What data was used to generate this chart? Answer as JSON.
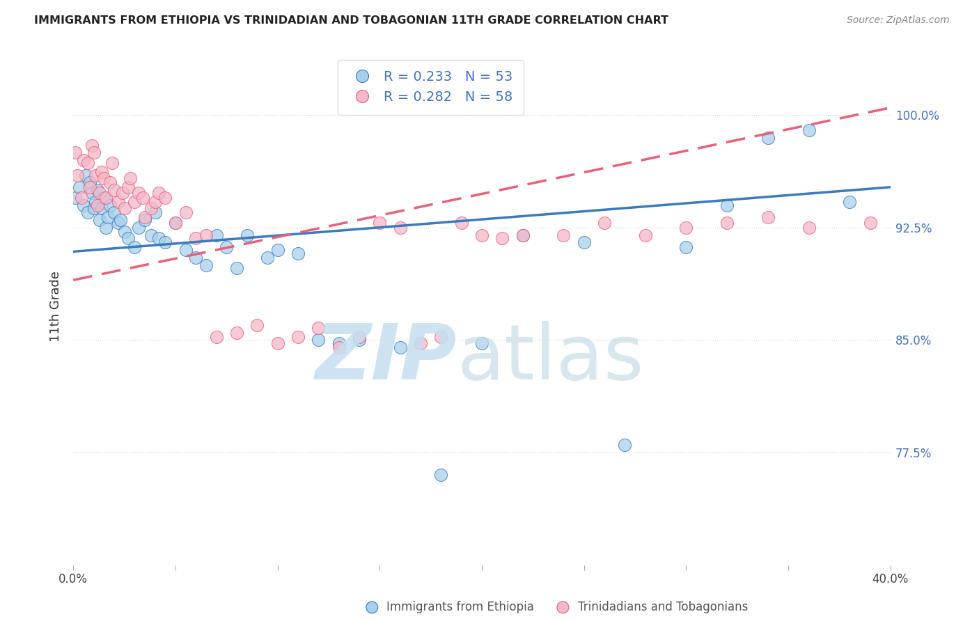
{
  "title": "IMMIGRANTS FROM ETHIOPIA VS TRINIDADIAN AND TOBAGONIAN 11TH GRADE CORRELATION CHART",
  "source": "Source: ZipAtlas.com",
  "ylabel": "11th Grade",
  "ylabel_ticks": [
    "100.0%",
    "92.5%",
    "85.0%",
    "77.5%"
  ],
  "ylabel_values": [
    1.0,
    0.925,
    0.85,
    0.775
  ],
  "xlim": [
    0.0,
    0.4
  ],
  "ylim": [
    0.7,
    1.045
  ],
  "color_blue": "#a8d0eb",
  "color_pink": "#f4b8c8",
  "color_blue_line": "#3a7abf",
  "color_pink_line": "#e8607a",
  "blue_x": [
    0.001,
    0.003,
    0.005,
    0.006,
    0.007,
    0.008,
    0.009,
    0.01,
    0.011,
    0.012,
    0.013,
    0.014,
    0.015,
    0.016,
    0.017,
    0.018,
    0.02,
    0.022,
    0.023,
    0.025,
    0.027,
    0.03,
    0.032,
    0.035,
    0.038,
    0.04,
    0.042,
    0.045,
    0.05,
    0.055,
    0.06,
    0.065,
    0.07,
    0.075,
    0.08,
    0.085,
    0.095,
    0.1,
    0.11,
    0.12,
    0.13,
    0.14,
    0.16,
    0.18,
    0.2,
    0.22,
    0.25,
    0.27,
    0.3,
    0.32,
    0.34,
    0.36,
    0.38
  ],
  "blue_y": [
    0.945,
    0.952,
    0.94,
    0.96,
    0.935,
    0.955,
    0.948,
    0.938,
    0.942,
    0.95,
    0.93,
    0.938,
    0.945,
    0.925,
    0.932,
    0.94,
    0.935,
    0.928,
    0.93,
    0.922,
    0.918,
    0.912,
    0.925,
    0.93,
    0.92,
    0.935,
    0.918,
    0.915,
    0.928,
    0.91,
    0.905,
    0.9,
    0.92,
    0.912,
    0.898,
    0.92,
    0.905,
    0.91,
    0.908,
    0.85,
    0.848,
    0.85,
    0.845,
    0.76,
    0.848,
    0.92,
    0.915,
    0.78,
    0.912,
    0.94,
    0.985,
    0.99,
    0.942
  ],
  "pink_x": [
    0.001,
    0.002,
    0.004,
    0.005,
    0.007,
    0.008,
    0.009,
    0.01,
    0.011,
    0.012,
    0.013,
    0.014,
    0.015,
    0.016,
    0.018,
    0.019,
    0.02,
    0.022,
    0.024,
    0.025,
    0.027,
    0.028,
    0.03,
    0.032,
    0.034,
    0.035,
    0.038,
    0.04,
    0.042,
    0.045,
    0.05,
    0.055,
    0.06,
    0.065,
    0.07,
    0.08,
    0.09,
    0.1,
    0.11,
    0.12,
    0.13,
    0.14,
    0.15,
    0.16,
    0.17,
    0.18,
    0.19,
    0.2,
    0.21,
    0.22,
    0.24,
    0.26,
    0.28,
    0.3,
    0.32,
    0.34,
    0.36,
    0.39
  ],
  "pink_y": [
    0.975,
    0.96,
    0.945,
    0.97,
    0.968,
    0.952,
    0.98,
    0.975,
    0.96,
    0.94,
    0.948,
    0.962,
    0.958,
    0.945,
    0.955,
    0.968,
    0.95,
    0.942,
    0.948,
    0.938,
    0.952,
    0.958,
    0.942,
    0.948,
    0.945,
    0.932,
    0.938,
    0.942,
    0.948,
    0.945,
    0.928,
    0.935,
    0.918,
    0.92,
    0.852,
    0.855,
    0.86,
    0.848,
    0.852,
    0.858,
    0.845,
    0.852,
    0.928,
    0.925,
    0.848,
    0.852,
    0.928,
    0.92,
    0.918,
    0.92,
    0.92,
    0.928,
    0.92,
    0.925,
    0.928,
    0.932,
    0.925,
    0.928
  ],
  "blue_line_x0": 0.0,
  "blue_line_y0": 0.909,
  "blue_line_x1": 0.4,
  "blue_line_y1": 0.952,
  "pink_line_x0": 0.0,
  "pink_line_y0": 0.89,
  "pink_line_x1": 0.4,
  "pink_line_y1": 1.005
}
